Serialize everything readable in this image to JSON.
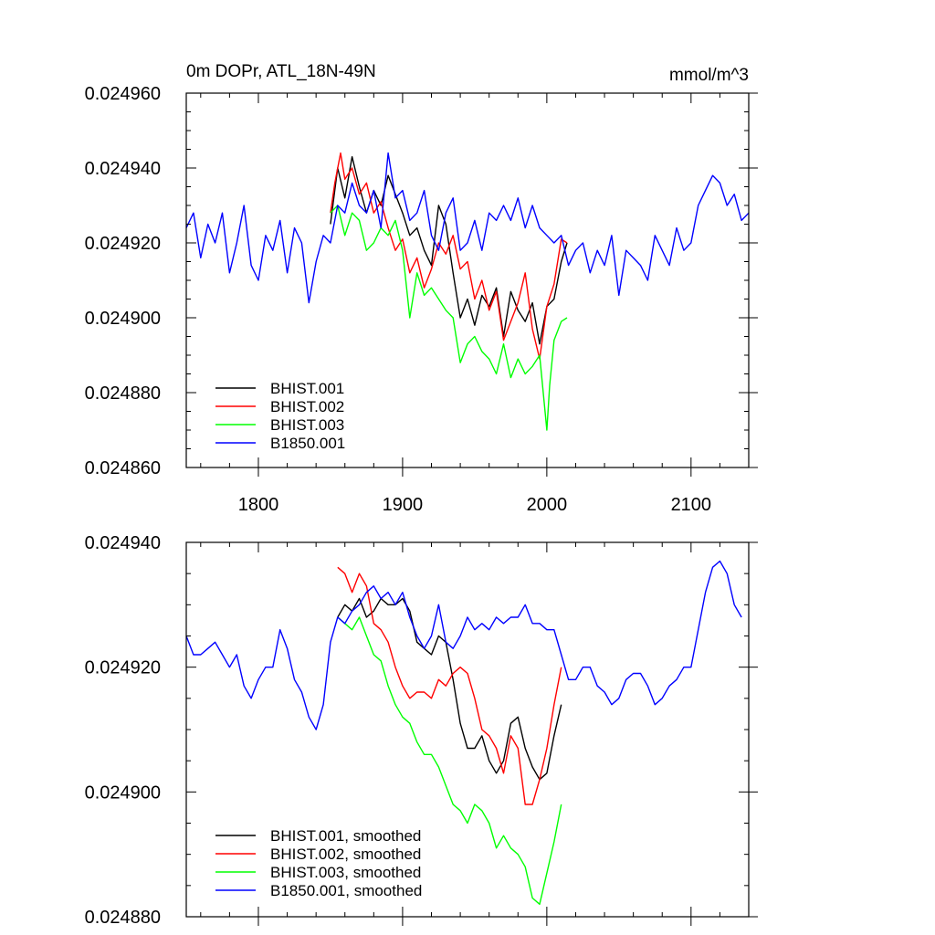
{
  "chart_data": [
    {
      "type": "line",
      "title": "0m DOPr, ATL_18N-49N",
      "units": "mmol/m^3",
      "xlim": [
        1750,
        2140
      ],
      "ylim": [
        0.02486,
        0.02496
      ],
      "xticks": [
        1800,
        1900,
        2000,
        2100
      ],
      "yticks": [
        0.02486,
        0.02488,
        0.0249,
        0.02492,
        0.02494,
        0.02496
      ],
      "ytick_labels": [
        "0.024860",
        "0.024880",
        "0.024900",
        "0.024920",
        "0.024940",
        "0.024960"
      ],
      "xtick_labels": [
        "1800",
        "1900",
        "2000",
        "2100"
      ],
      "series": [
        {
          "name": "BHIST.001",
          "color": "#000000",
          "x": [
            1850,
            1855,
            1860,
            1865,
            1870,
            1875,
            1880,
            1885,
            1890,
            1895,
            1900,
            1905,
            1910,
            1915,
            1920,
            1925,
            1930,
            1935,
            1940,
            1945,
            1950,
            1955,
            1960,
            1965,
            1970,
            1975,
            1980,
            1985,
            1990,
            1995,
            2000,
            2005,
            2010,
            2014
          ],
          "y": [
            0.024925,
            0.02494,
            0.024932,
            0.024943,
            0.024935,
            0.024928,
            0.024934,
            0.02493,
            0.024938,
            0.024933,
            0.024928,
            0.024922,
            0.024924,
            0.024918,
            0.024914,
            0.02493,
            0.024925,
            0.024912,
            0.0249,
            0.024905,
            0.024898,
            0.024906,
            0.024903,
            0.024908,
            0.024895,
            0.024907,
            0.024902,
            0.024899,
            0.024904,
            0.024893,
            0.024903,
            0.024905,
            0.024915,
            0.02492
          ]
        },
        {
          "name": "BHIST.002",
          "color": "#ff0000",
          "x": [
            1850,
            1853,
            1857,
            1860,
            1865,
            1870,
            1875,
            1880,
            1885,
            1890,
            1895,
            1900,
            1905,
            1910,
            1915,
            1920,
            1925,
            1930,
            1935,
            1940,
            1945,
            1950,
            1955,
            1960,
            1965,
            1970,
            1975,
            1980,
            1985,
            1990,
            1995,
            2000,
            2005,
            2010,
            2014
          ],
          "y": [
            0.024928,
            0.024936,
            0.024944,
            0.024937,
            0.02494,
            0.024933,
            0.024936,
            0.024928,
            0.024931,
            0.024924,
            0.024918,
            0.024921,
            0.024912,
            0.024916,
            0.024908,
            0.024913,
            0.02492,
            0.024917,
            0.024922,
            0.024913,
            0.024915,
            0.024905,
            0.02491,
            0.024902,
            0.024907,
            0.024894,
            0.024899,
            0.024904,
            0.024912,
            0.024897,
            0.024889,
            0.024903,
            0.024909,
            0.024921,
            0.02492
          ]
        },
        {
          "name": "BHIST.003",
          "color": "#00ff00",
          "x": [
            1850,
            1855,
            1860,
            1865,
            1870,
            1875,
            1880,
            1885,
            1890,
            1895,
            1900,
            1905,
            1910,
            1915,
            1920,
            1925,
            1930,
            1935,
            1940,
            1945,
            1950,
            1955,
            1960,
            1965,
            1970,
            1975,
            1980,
            1985,
            1990,
            1995,
            2000,
            2002,
            2005,
            2010,
            2014
          ],
          "y": [
            0.024928,
            0.02493,
            0.024922,
            0.024928,
            0.024926,
            0.024918,
            0.02492,
            0.024924,
            0.024922,
            0.024926,
            0.024918,
            0.0249,
            0.024912,
            0.024906,
            0.024908,
            0.024905,
            0.024902,
            0.0249,
            0.024888,
            0.024893,
            0.024895,
            0.024891,
            0.024889,
            0.024885,
            0.024893,
            0.024884,
            0.024889,
            0.024885,
            0.024887,
            0.02489,
            0.02487,
            0.024882,
            0.024894,
            0.024899,
            0.0249
          ]
        },
        {
          "name": "B1850.001",
          "color": "#0000ff",
          "x": [
            1750,
            1755,
            1760,
            1765,
            1770,
            1775,
            1780,
            1785,
            1790,
            1795,
            1800,
            1805,
            1810,
            1815,
            1820,
            1825,
            1830,
            1835,
            1840,
            1845,
            1850,
            1855,
            1860,
            1865,
            1870,
            1875,
            1880,
            1885,
            1890,
            1895,
            1900,
            1905,
            1910,
            1915,
            1920,
            1925,
            1930,
            1935,
            1940,
            1945,
            1950,
            1955,
            1960,
            1965,
            1970,
            1975,
            1980,
            1985,
            1990,
            1995,
            2000,
            2005,
            2010,
            2015,
            2020,
            2025,
            2030,
            2035,
            2040,
            2045,
            2050,
            2055,
            2060,
            2065,
            2070,
            2075,
            2080,
            2085,
            2090,
            2095,
            2100,
            2105,
            2110,
            2115,
            2120,
            2125,
            2130,
            2135,
            2140
          ],
          "y": [
            0.024924,
            0.024928,
            0.024916,
            0.024925,
            0.02492,
            0.024928,
            0.024912,
            0.02492,
            0.02493,
            0.024914,
            0.02491,
            0.024922,
            0.024918,
            0.024926,
            0.024912,
            0.024924,
            0.02492,
            0.024904,
            0.024915,
            0.024922,
            0.02492,
            0.02493,
            0.024928,
            0.024936,
            0.02493,
            0.024928,
            0.024934,
            0.024924,
            0.024944,
            0.024932,
            0.024934,
            0.024926,
            0.024928,
            0.024934,
            0.024922,
            0.024918,
            0.024928,
            0.024932,
            0.024918,
            0.02492,
            0.024926,
            0.024918,
            0.024928,
            0.024926,
            0.02493,
            0.024926,
            0.024932,
            0.024924,
            0.02493,
            0.024924,
            0.024922,
            0.02492,
            0.024922,
            0.024914,
            0.024918,
            0.02492,
            0.024912,
            0.024918,
            0.024914,
            0.024922,
            0.024906,
            0.024918,
            0.024916,
            0.024914,
            0.02491,
            0.024922,
            0.024918,
            0.024914,
            0.024924,
            0.024918,
            0.02492,
            0.02493,
            0.024934,
            0.024938,
            0.024936,
            0.02493,
            0.024933,
            0.024926,
            0.024928
          ]
        }
      ],
      "legend": {
        "placement": "bottom-left",
        "entries": [
          "BHIST.001",
          "BHIST.002",
          "BHIST.003",
          "B1850.001"
        ]
      }
    },
    {
      "type": "line",
      "title": "",
      "xlim": [
        1750,
        2140
      ],
      "ylim": [
        0.02488,
        0.02494
      ],
      "xticks": [
        1800,
        1900,
        2000,
        2100
      ],
      "yticks": [
        0.02488,
        0.0249,
        0.02492,
        0.02494
      ],
      "ytick_labels": [
        "0.024880",
        "0.024900",
        "0.024920",
        "0.024940"
      ],
      "series": [
        {
          "name": "BHIST.001, smoothed",
          "color": "#000000",
          "x": [
            1855,
            1860,
            1865,
            1870,
            1875,
            1880,
            1885,
            1890,
            1895,
            1900,
            1905,
            1910,
            1915,
            1920,
            1925,
            1930,
            1935,
            1940,
            1945,
            1950,
            1955,
            1960,
            1965,
            1970,
            1975,
            1980,
            1985,
            1990,
            1995,
            2000,
            2005,
            2010
          ],
          "y": [
            0.024928,
            0.02493,
            0.024929,
            0.024931,
            0.024928,
            0.024929,
            0.024931,
            0.02493,
            0.02493,
            0.024931,
            0.024929,
            0.024924,
            0.024923,
            0.024922,
            0.024925,
            0.024924,
            0.024918,
            0.024911,
            0.024907,
            0.024907,
            0.024909,
            0.024905,
            0.024903,
            0.024905,
            0.024911,
            0.024912,
            0.024907,
            0.024904,
            0.024902,
            0.024903,
            0.024909,
            0.024914
          ]
        },
        {
          "name": "BHIST.002, smoothed",
          "color": "#ff0000",
          "x": [
            1855,
            1860,
            1865,
            1870,
            1875,
            1880,
            1885,
            1890,
            1895,
            1900,
            1905,
            1910,
            1915,
            1920,
            1925,
            1930,
            1935,
            1940,
            1945,
            1950,
            1955,
            1960,
            1965,
            1970,
            1975,
            1980,
            1985,
            1990,
            1995,
            2000,
            2005,
            2010
          ],
          "y": [
            0.024936,
            0.024935,
            0.024932,
            0.024935,
            0.024933,
            0.024927,
            0.024926,
            0.024924,
            0.02492,
            0.024917,
            0.024915,
            0.024916,
            0.024916,
            0.024915,
            0.024918,
            0.024917,
            0.024919,
            0.02492,
            0.024919,
            0.024915,
            0.02491,
            0.024909,
            0.024907,
            0.024903,
            0.024909,
            0.024907,
            0.024898,
            0.024898,
            0.024902,
            0.024907,
            0.024914,
            0.02492
          ]
        },
        {
          "name": "BHIST.003, smoothed",
          "color": "#00ff00",
          "x": [
            1855,
            1860,
            1865,
            1870,
            1875,
            1880,
            1885,
            1890,
            1895,
            1900,
            1905,
            1910,
            1915,
            1920,
            1925,
            1930,
            1935,
            1940,
            1945,
            1950,
            1955,
            1960,
            1965,
            1970,
            1975,
            1980,
            1985,
            1990,
            1995,
            2000,
            2005,
            2010
          ],
          "y": [
            0.024928,
            0.024927,
            0.024926,
            0.024928,
            0.024925,
            0.024922,
            0.024921,
            0.024917,
            0.024914,
            0.024912,
            0.024911,
            0.024908,
            0.024906,
            0.024906,
            0.024904,
            0.024901,
            0.024898,
            0.024897,
            0.024895,
            0.024898,
            0.024897,
            0.024895,
            0.024891,
            0.024893,
            0.024891,
            0.02489,
            0.024888,
            0.024883,
            0.024882,
            0.024887,
            0.024892,
            0.024898
          ]
        },
        {
          "name": "B1850.001, smoothed",
          "color": "#0000ff",
          "x": [
            1750,
            1755,
            1760,
            1765,
            1770,
            1775,
            1780,
            1785,
            1790,
            1795,
            1800,
            1805,
            1810,
            1815,
            1820,
            1825,
            1830,
            1835,
            1840,
            1845,
            1850,
            1855,
            1860,
            1865,
            1870,
            1875,
            1880,
            1885,
            1890,
            1895,
            1900,
            1905,
            1910,
            1915,
            1920,
            1925,
            1930,
            1935,
            1940,
            1945,
            1950,
            1955,
            1960,
            1965,
            1970,
            1975,
            1980,
            1985,
            1990,
            1995,
            2000,
            2005,
            2010,
            2015,
            2020,
            2025,
            2030,
            2035,
            2040,
            2045,
            2050,
            2055,
            2060,
            2065,
            2070,
            2075,
            2080,
            2085,
            2090,
            2095,
            2100,
            2105,
            2110,
            2115,
            2120,
            2125,
            2130,
            2135
          ],
          "y": [
            0.024925,
            0.024922,
            0.024922,
            0.024923,
            0.024924,
            0.024922,
            0.02492,
            0.024922,
            0.024917,
            0.024915,
            0.024918,
            0.02492,
            0.02492,
            0.024926,
            0.024923,
            0.024918,
            0.024916,
            0.024912,
            0.02491,
            0.024914,
            0.024924,
            0.024928,
            0.024927,
            0.024929,
            0.02493,
            0.024932,
            0.024933,
            0.024931,
            0.024932,
            0.02493,
            0.024932,
            0.024928,
            0.024925,
            0.024923,
            0.024925,
            0.02493,
            0.024924,
            0.024923,
            0.024925,
            0.024928,
            0.024926,
            0.024927,
            0.024926,
            0.024928,
            0.024927,
            0.024928,
            0.024928,
            0.02493,
            0.024927,
            0.024927,
            0.024926,
            0.024926,
            0.024922,
            0.024918,
            0.024918,
            0.02492,
            0.02492,
            0.024917,
            0.024916,
            0.024914,
            0.024915,
            0.024918,
            0.024919,
            0.024919,
            0.024917,
            0.024914,
            0.024915,
            0.024917,
            0.024918,
            0.02492,
            0.02492,
            0.024926,
            0.024932,
            0.024936,
            0.024937,
            0.024935,
            0.02493,
            0.024928
          ]
        }
      ],
      "legend": {
        "placement": "bottom-left",
        "entries": [
          "BHIST.001, smoothed",
          "BHIST.002, smoothed",
          "BHIST.003, smoothed",
          "B1850.001, smoothed"
        ]
      }
    }
  ]
}
